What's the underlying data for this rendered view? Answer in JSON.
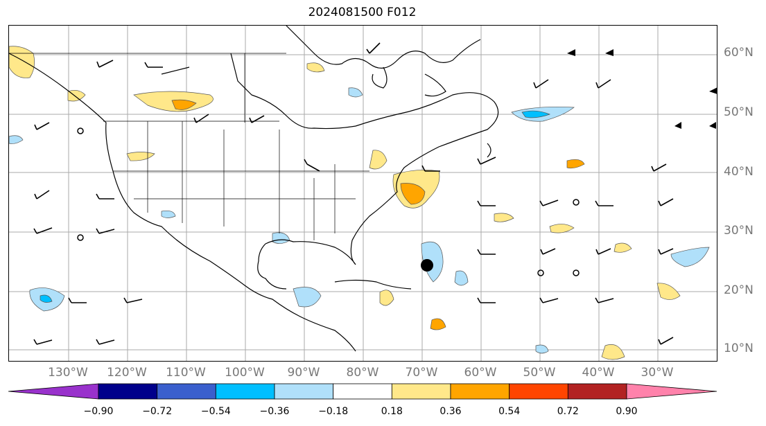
{
  "title": "2024081500 F012",
  "lat_labels": [
    "60°N",
    "50°N",
    "40°N",
    "30°N",
    "20°N",
    "10°N"
  ],
  "lon_labels": [
    "130°W",
    "120°W",
    "110°W",
    "100°W",
    "90°W",
    "80°W",
    "70°W",
    "60°W",
    "50°W",
    "40°W",
    "30°W"
  ],
  "colorbar": {
    "ticks": [
      "−0.90",
      "−0.72",
      "−0.54",
      "−0.36",
      "−0.18",
      "0.18",
      "0.36",
      "0.54",
      "0.72",
      "0.90"
    ],
    "colors": [
      "#9932cc",
      "#00008b",
      "#3a5fcd",
      "#00bfff",
      "#b0e0fa",
      "#ffffff",
      "#ffe88a",
      "#ffa500",
      "#ff4500",
      "#b22222",
      "#ff82ab"
    ]
  },
  "legend_icon": "wind-barb-icon"
}
